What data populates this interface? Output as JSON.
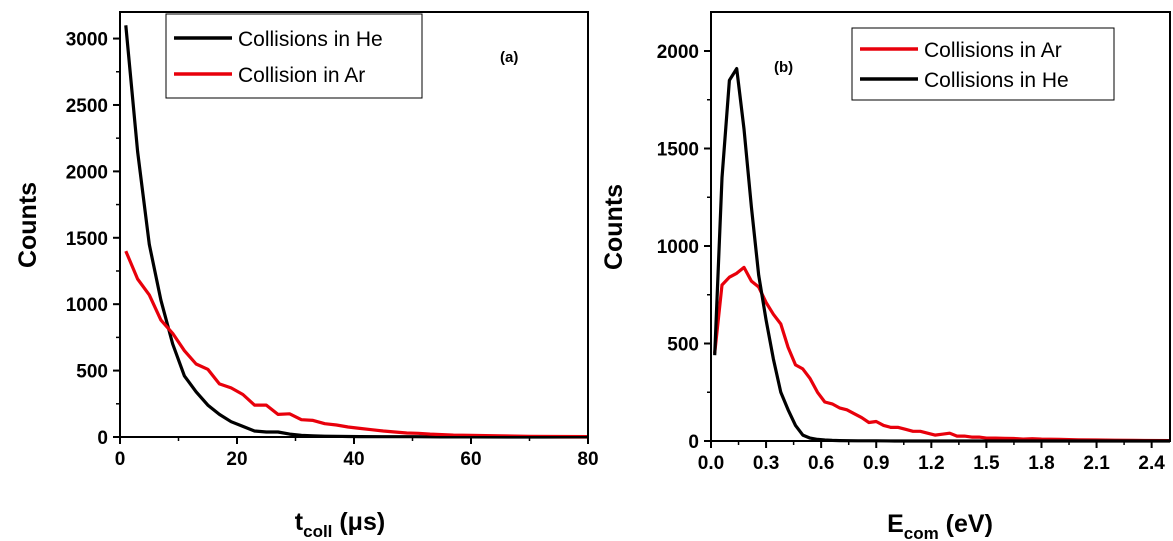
{
  "chart_data": [
    {
      "type": "line",
      "panel_label": "(a)",
      "xlabel_main": "t",
      "xlabel_sub": "coll",
      "xlabel_unit": " (μs)",
      "ylabel": "Counts",
      "xlim": [
        0,
        80
      ],
      "ylim": [
        0,
        3200
      ],
      "xticks": [
        "0",
        "20",
        "40",
        "60",
        "80"
      ],
      "yticks": [
        "0",
        "500",
        "1000",
        "1500",
        "2000",
        "2500",
        "3000"
      ],
      "legend_position": "top-center",
      "series": [
        {
          "name": "Collisions in He",
          "color": "#000000",
          "x": [
            1,
            3,
            5,
            7,
            9,
            11,
            13,
            15,
            17,
            19,
            21,
            23,
            25,
            27,
            29,
            31,
            33,
            35,
            37,
            39,
            41,
            45,
            50,
            55,
            60,
            70,
            80
          ],
          "y": [
            3100,
            2150,
            1450,
            1030,
            700,
            460,
            340,
            240,
            170,
            115,
            80,
            45,
            38,
            38,
            22,
            12,
            8,
            6,
            5,
            4,
            3,
            2,
            2,
            1,
            1,
            0,
            0
          ]
        },
        {
          "name": "Collision in Ar",
          "color": "#e8000b",
          "x": [
            1,
            3,
            5,
            7,
            9,
            11,
            13,
            15,
            17,
            19,
            21,
            23,
            25,
            27,
            29,
            31,
            33,
            35,
            37,
            39,
            41,
            43,
            45,
            47,
            49,
            51,
            53,
            55,
            57,
            60,
            65,
            70,
            75,
            80
          ],
          "y": [
            1400,
            1190,
            1070,
            880,
            780,
            650,
            550,
            510,
            400,
            370,
            320,
            240,
            240,
            170,
            175,
            130,
            125,
            100,
            90,
            75,
            65,
            55,
            45,
            38,
            30,
            28,
            22,
            18,
            14,
            12,
            8,
            5,
            4,
            3
          ]
        }
      ]
    },
    {
      "type": "line",
      "panel_label": "(b)",
      "xlabel_main": "E",
      "xlabel_sub": "com",
      "xlabel_unit": " (eV)",
      "ylabel": "Counts",
      "xlim": [
        0,
        2.5
      ],
      "ylim": [
        0,
        2200
      ],
      "xticks": [
        "0.0",
        "0.3",
        "0.6",
        "0.9",
        "1.2",
        "1.5",
        "1.8",
        "2.1",
        "2.4"
      ],
      "yticks": [
        "0",
        "500",
        "1000",
        "1500",
        "2000"
      ],
      "legend_position": "top-right",
      "series": [
        {
          "name": "Collisions in Ar",
          "color": "#e8000b",
          "x": [
            0.02,
            0.06,
            0.1,
            0.14,
            0.18,
            0.22,
            0.26,
            0.3,
            0.34,
            0.38,
            0.42,
            0.46,
            0.5,
            0.54,
            0.58,
            0.62,
            0.66,
            0.7,
            0.74,
            0.78,
            0.82,
            0.86,
            0.9,
            0.94,
            0.98,
            1.02,
            1.06,
            1.1,
            1.14,
            1.18,
            1.22,
            1.26,
            1.3,
            1.34,
            1.38,
            1.42,
            1.46,
            1.5,
            1.55,
            1.6,
            1.65,
            1.7,
            1.75,
            1.8,
            1.9,
            2.0,
            2.1,
            2.2,
            2.3,
            2.5
          ],
          "y": [
            450,
            800,
            840,
            860,
            890,
            820,
            790,
            710,
            650,
            600,
            480,
            390,
            370,
            320,
            250,
            200,
            190,
            170,
            160,
            140,
            120,
            95,
            100,
            80,
            70,
            70,
            60,
            50,
            50,
            40,
            30,
            35,
            40,
            25,
            25,
            20,
            20,
            15,
            15,
            14,
            13,
            10,
            12,
            10,
            8,
            6,
            5,
            4,
            3,
            2
          ]
        },
        {
          "name": "Collisions in He",
          "color": "#000000",
          "x": [
            0.02,
            0.06,
            0.1,
            0.14,
            0.18,
            0.22,
            0.26,
            0.3,
            0.34,
            0.38,
            0.42,
            0.46,
            0.5,
            0.54,
            0.58,
            0.62,
            0.66,
            0.7,
            0.8,
            0.9,
            1.0,
            1.2,
            1.5,
            2.0,
            2.5
          ],
          "y": [
            440,
            1350,
            1850,
            1910,
            1600,
            1200,
            850,
            620,
            420,
            250,
            160,
            80,
            30,
            15,
            8,
            5,
            3,
            2,
            1,
            1,
            0,
            0,
            0,
            0,
            0
          ]
        }
      ]
    }
  ]
}
